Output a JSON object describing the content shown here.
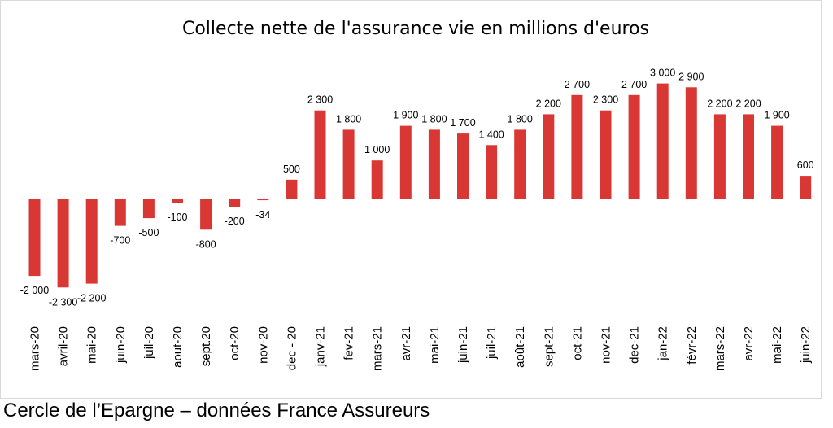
{
  "source_note": "Cercle de l’Epargne – données France Assureurs",
  "chart_data": {
    "type": "bar",
    "title": "Collecte nette de l'assurance vie en millions d'euros",
    "xlabel": "",
    "ylabel": "",
    "bar_color": "#d93734",
    "categories": [
      "mars-20",
      "avril-20",
      "mai-20",
      "juin-20",
      "juil-20",
      "aout-20",
      "sept.20",
      "oct-20",
      "nov-20",
      "dec - 20",
      "janv-21",
      "fev-21",
      "mars-21",
      "avr-21",
      "mai-21",
      "juin-21",
      "juil-21",
      "août-21",
      "sept-21",
      "oct-21",
      "nov-21",
      "dec-21",
      "jan-22",
      "févr-22",
      "mars-22",
      "avr-22",
      "mai-22",
      "juin-22"
    ],
    "values": [
      -2000,
      -2300,
      -2200,
      -700,
      -500,
      -100,
      -800,
      -200,
      -34,
      500,
      2300,
      1800,
      1000,
      1900,
      1800,
      1700,
      1400,
      1800,
      2200,
      2700,
      2300,
      2700,
      3000,
      2900,
      2200,
      2200,
      1900,
      600
    ],
    "value_labels": [
      "-2 000",
      "-2 300",
      "-2 200",
      "-700",
      "-500",
      "-100",
      "-800",
      "-200",
      "-34",
      "500",
      "2 300",
      "1 800",
      "1 000",
      "1 900",
      "1 800",
      "1 700",
      "1 400",
      "1 800",
      "2 200",
      "2 700",
      "2 300",
      "2 700",
      "3 000",
      "2 900",
      "2 200",
      "2 200",
      "1 900",
      "600"
    ],
    "ylim": [
      -2300,
      3000
    ],
    "grid": false,
    "legend": "none"
  }
}
